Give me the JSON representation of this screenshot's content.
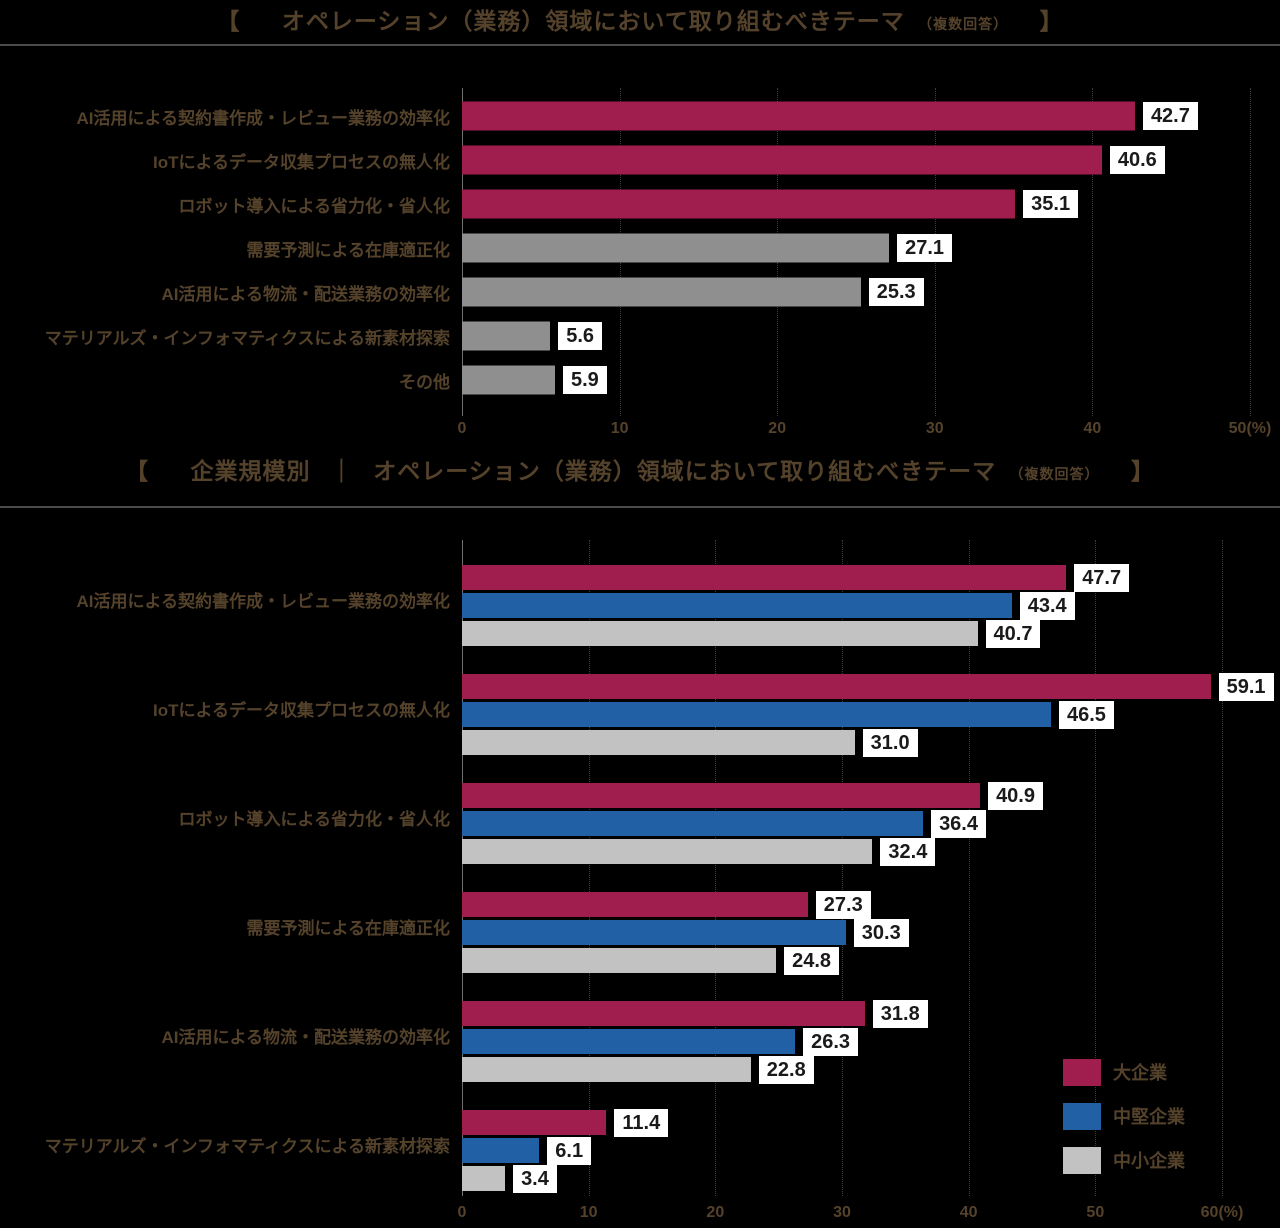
{
  "colors": {
    "background": "#000000",
    "heading_text": "#55422b",
    "rule": "#4b4b4b",
    "gridline": "#3d3d3d",
    "zero_line": "#6f6f6f",
    "value_box_bg": "#ffffff",
    "value_box_text": "#1a1a1a",
    "crimson": "#a01e4e",
    "blue": "#2160a5",
    "gray_dark": "#8f8f8f",
    "gray_light": "#c2c2c2"
  },
  "chart_data": [
    {
      "type": "bar",
      "orientation": "horizontal",
      "title_bracket_open": "【",
      "title": "オペレーション（業務）領域において取り組むべきテーマ",
      "title_note": "（複数回答）",
      "title_bracket_close": "】",
      "categories": [
        "AI活用による契約書作成・レビュー業務の効率化",
        "IoTによるデータ収集プロセスの無人化",
        "ロボット導入による省力化・省人化",
        "需要予測による在庫適正化",
        "AI活用による物流・配送業務の効率化",
        "マテリアルズ・インフォマティクスによる新素材探索",
        "その他"
      ],
      "values": [
        42.7,
        40.6,
        35.1,
        27.1,
        25.3,
        5.6,
        5.9
      ],
      "bar_color_keys": [
        "crimson",
        "crimson",
        "crimson",
        "gray_dark",
        "gray_dark",
        "gray_dark",
        "gray_dark"
      ],
      "xlim": [
        0,
        50
      ],
      "xticks": [
        0,
        10,
        20,
        30,
        40,
        50
      ],
      "xtick_labels": [
        "0",
        "10",
        "20",
        "30",
        "40",
        "50(%)"
      ],
      "grid": true,
      "legend_position": "none"
    },
    {
      "type": "bar",
      "orientation": "horizontal",
      "title_bracket_open": "【",
      "title_prefix": "企業規模別",
      "title_separator": "｜",
      "title": "オペレーション（業務）領域において取り組むべきテーマ",
      "title_note": "（複数回答）",
      "title_bracket_close": "】",
      "categories": [
        "AI活用による契約書作成・レビュー業務の効率化",
        "IoTによるデータ収集プロセスの無人化",
        "ロボット導入による省力化・省人化",
        "需要予測による在庫適正化",
        "AI活用による物流・配送業務の効率化",
        "マテリアルズ・インフォマティクスによる新素材探索"
      ],
      "series": [
        {
          "name": "大企業",
          "color_key": "crimson",
          "values": [
            47.7,
            59.1,
            40.9,
            27.3,
            31.8,
            11.4
          ]
        },
        {
          "name": "中堅企業",
          "color_key": "blue",
          "values": [
            43.4,
            46.5,
            36.4,
            30.3,
            26.3,
            6.1
          ]
        },
        {
          "name": "中小企業",
          "color_key": "gray_light",
          "values": [
            40.7,
            31.0,
            32.4,
            24.8,
            22.8,
            3.4
          ]
        }
      ],
      "xlim": [
        0,
        60
      ],
      "xticks": [
        0,
        10,
        20,
        30,
        40,
        50,
        60
      ],
      "xtick_labels": [
        "0",
        "10",
        "20",
        "30",
        "40",
        "50",
        "60(%)"
      ],
      "grid": true,
      "legend_position": "right-bottom"
    }
  ]
}
